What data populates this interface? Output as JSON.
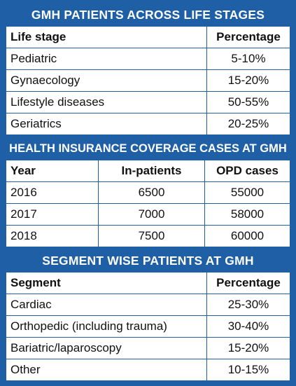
{
  "sections": {
    "life_stages": {
      "title": "GMH PATIENTS ACROSS LIFE STAGES",
      "headers": [
        "Life stage",
        "Percentage"
      ],
      "rows": [
        [
          "Pediatric",
          "5-10%"
        ],
        [
          "Gynaecology",
          "15-20%"
        ],
        [
          "Lifestyle diseases",
          "50-55%"
        ],
        [
          "Geriatrics",
          "20-25%"
        ]
      ]
    },
    "insurance": {
      "title": "HEALTH INSURANCE COVERAGE CASES AT GMH",
      "headers": [
        "Year",
        "In-patients",
        "OPD cases"
      ],
      "rows": [
        [
          "2016",
          "6500",
          "55000"
        ],
        [
          "2017",
          "7000",
          "58000"
        ],
        [
          "2018",
          "7500",
          "60000"
        ]
      ]
    },
    "segments": {
      "title": "SEGMENT WISE PATIENTS AT GMH",
      "headers": [
        "Segment",
        "Percentage"
      ],
      "rows": [
        [
          "Cardiac",
          "25-30%"
        ],
        [
          "Orthopedic (including trauma)",
          "30-40%"
        ],
        [
          "Bariatric/laparoscopy",
          "15-20%"
        ],
        [
          "Other",
          "10-15%"
        ]
      ]
    }
  },
  "colors": {
    "frame_blue": "#1e5fa6",
    "cell_background": "#ffffff",
    "text": "#111111"
  }
}
